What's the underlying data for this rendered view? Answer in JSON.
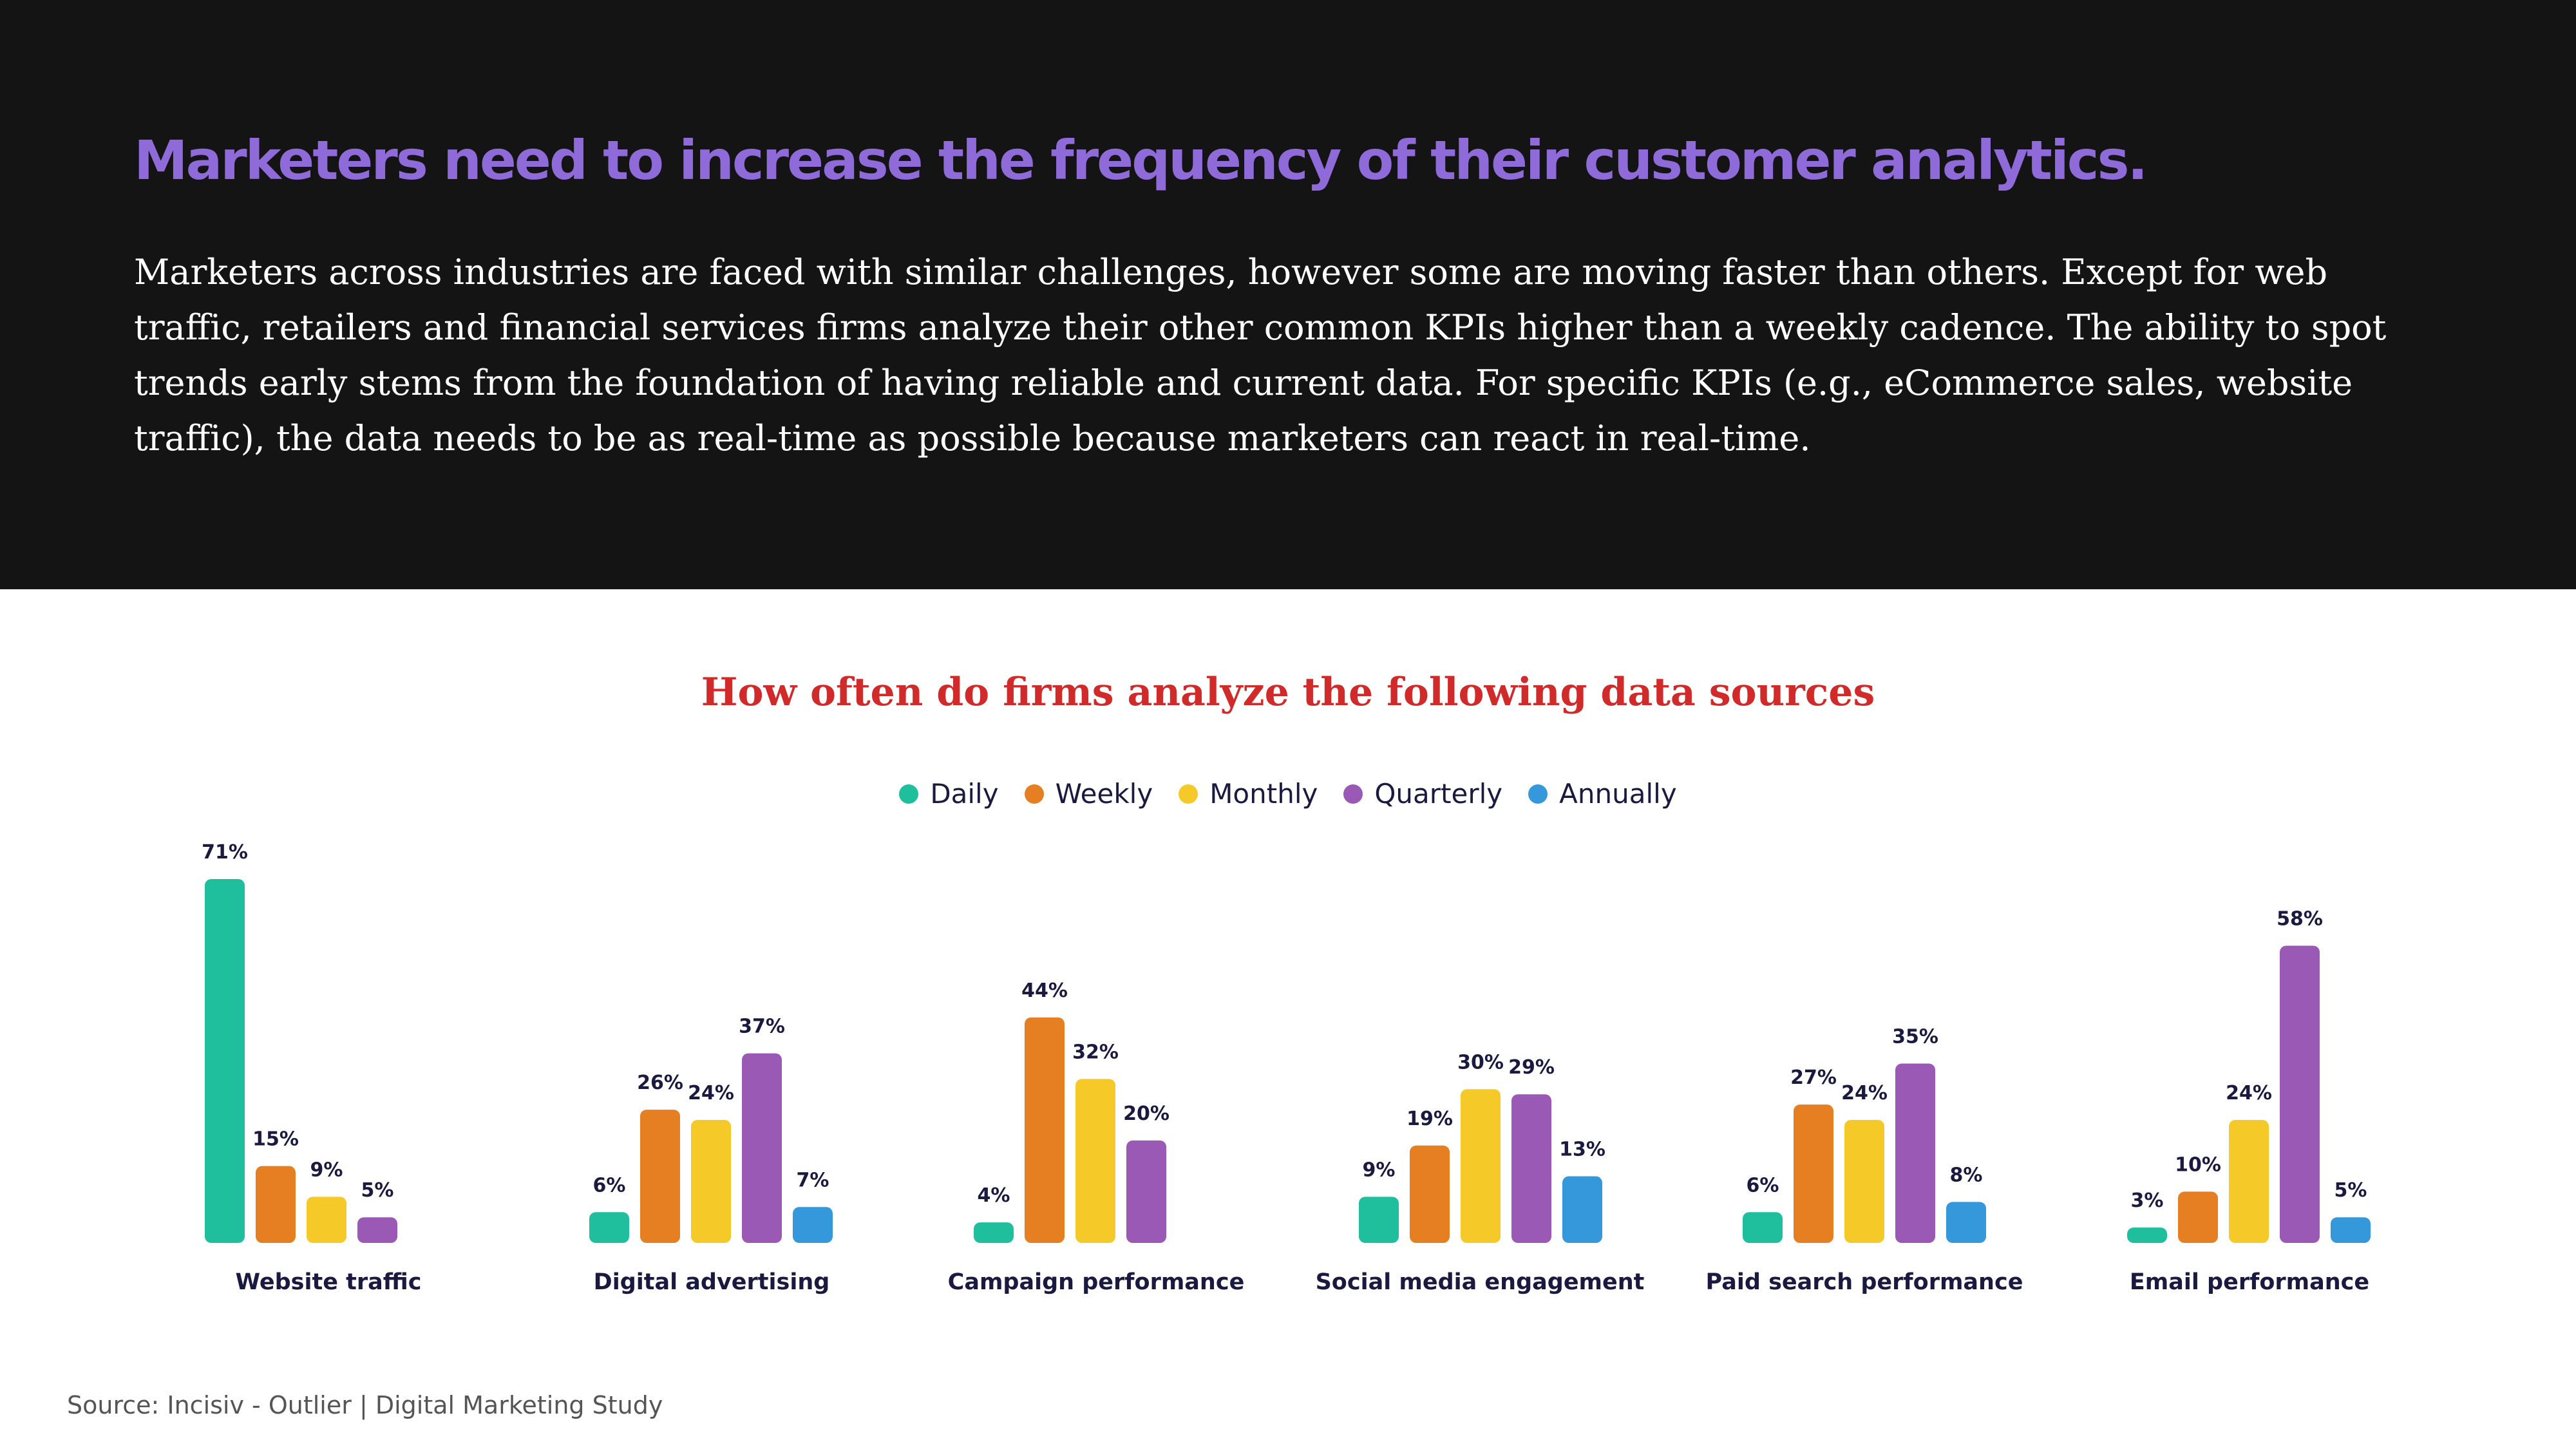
{
  "header": {
    "title": "Marketers need to increase the frequency of their customer analytics.",
    "body": "Marketers across industries are faced with similar challenges, however some are moving faster than others. Except for web traffic, retailers and financial services firms analyze their other common KPIs higher than a weekly cadence. The ability to spot trends early stems from the foundation of having reliable and current data. For specific KPIs (e.g., eCommerce sales, website traffic), the data needs to be as real-time as possible because marketers can react in real-time."
  },
  "chart_data": {
    "type": "bar",
    "title": "How often do firms analyze the following data sources",
    "xlabel": "",
    "ylabel": "",
    "ylim": [
      0,
      71
    ],
    "grid": false,
    "legend_position": "top-center",
    "value_suffix": "%",
    "categories": [
      "Website traffic",
      "Digital advertising",
      "Campaign performance",
      "Social media engagement",
      "Paid search performance",
      "Email performance"
    ],
    "series": [
      {
        "name": "Daily",
        "color": "#1fbf9e",
        "values": [
          71,
          6,
          4,
          9,
          6,
          3
        ]
      },
      {
        "name": "Weekly",
        "color": "#e67e22",
        "values": [
          15,
          26,
          44,
          19,
          27,
          10
        ]
      },
      {
        "name": "Monthly",
        "color": "#f5c928",
        "values": [
          9,
          24,
          32,
          30,
          24,
          24
        ]
      },
      {
        "name": "Quarterly",
        "color": "#9b59b6",
        "values": [
          5,
          37,
          20,
          29,
          35,
          58
        ]
      },
      {
        "name": "Annually",
        "color": "#3498db",
        "values": [
          null,
          7,
          null,
          13,
          8,
          5
        ]
      }
    ]
  },
  "footer": {
    "source": "Source: Incisiv - Outlier | Digital Marketing Study"
  }
}
